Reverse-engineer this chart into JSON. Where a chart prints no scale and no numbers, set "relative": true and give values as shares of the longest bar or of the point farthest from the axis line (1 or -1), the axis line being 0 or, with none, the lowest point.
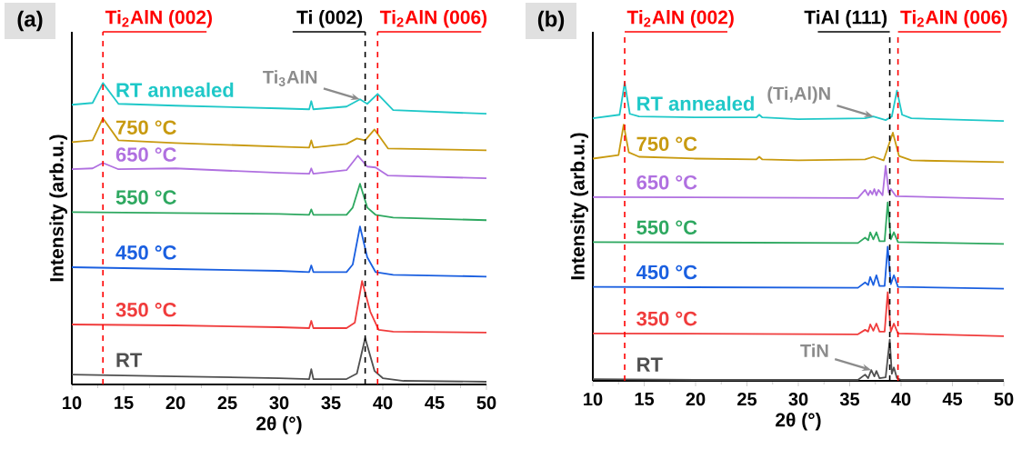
{
  "chart_data": [
    {
      "type": "line",
      "title": "(a)",
      "xlabel": "2θ (°)",
      "ylabel": "Intensity (arb.u.)",
      "relative": true,
      "xlim": [
        10,
        50
      ],
      "xticks": [
        10,
        15,
        20,
        25,
        30,
        35,
        40,
        45,
        50
      ],
      "series": [
        {
          "name": "RT",
          "color": "#505050",
          "x": [
            10,
            20,
            30,
            32.9,
            33.1,
            33.3,
            36.5,
            37.5,
            38.3,
            39.2,
            40,
            42,
            50
          ],
          "values": [
            0.033,
            0.027,
            0.021,
            0.018,
            0.051,
            0.018,
            0.018,
            0.036,
            0.154,
            0.045,
            0.021,
            0.012,
            0.009
          ]
        },
        {
          "name": "350 °C",
          "color": "#f03c3c",
          "x": [
            10,
            20,
            30,
            32.9,
            33.1,
            33.3,
            36.5,
            37.3,
            38.0,
            38.8,
            39.6,
            41,
            50
          ],
          "values": [
            0.199,
            0.196,
            0.19,
            0.187,
            0.211,
            0.187,
            0.187,
            0.205,
            0.343,
            0.241,
            0.181,
            0.175,
            0.172
          ]
        },
        {
          "name": "450 °C",
          "color": "#1a5fe0",
          "x": [
            10,
            20,
            30,
            32.9,
            33.1,
            33.3,
            36.5,
            37.1,
            37.8,
            38.5,
            39.3,
            41,
            50
          ],
          "values": [
            0.389,
            0.383,
            0.377,
            0.373,
            0.395,
            0.373,
            0.373,
            0.398,
            0.524,
            0.422,
            0.373,
            0.364,
            0.358
          ]
        },
        {
          "name": "550 °C",
          "color": "#2ea860",
          "x": [
            10,
            20,
            30,
            32.9,
            33.1,
            33.3,
            36.5,
            37.1,
            37.8,
            38.5,
            39.3,
            41,
            50
          ],
          "values": [
            0.572,
            0.569,
            0.566,
            0.563,
            0.581,
            0.563,
            0.563,
            0.587,
            0.666,
            0.587,
            0.563,
            0.554,
            0.545
          ]
        },
        {
          "name": "650 °C",
          "color": "#b070e0",
          "x": [
            10,
            12,
            13,
            14.5,
            20,
            30,
            32.9,
            33.1,
            33.3,
            36.5,
            37.6,
            38.5,
            39.3,
            40.5,
            50
          ],
          "values": [
            0.714,
            0.717,
            0.735,
            0.714,
            0.717,
            0.702,
            0.699,
            0.717,
            0.699,
            0.711,
            0.759,
            0.723,
            0.72,
            0.693,
            0.684
          ]
        },
        {
          "name": "750 °C",
          "color": "#c89a10",
          "x": [
            10,
            12,
            13,
            14.5,
            20,
            30,
            32.9,
            33.1,
            33.3,
            36.5,
            37.5,
            38.3,
            39.2,
            40.5,
            50
          ],
          "values": [
            0.804,
            0.81,
            0.883,
            0.81,
            0.801,
            0.789,
            0.786,
            0.81,
            0.786,
            0.798,
            0.816,
            0.81,
            0.846,
            0.783,
            0.777
          ]
        },
        {
          "name": "RT annealed",
          "color": "#1fc8c8",
          "x": [
            10,
            12,
            13,
            14.5,
            20,
            30,
            32.9,
            33.1,
            33.3,
            36.5,
            37.8,
            38.5,
            39.5,
            41,
            50
          ],
          "values": [
            0.928,
            0.934,
            1,
            0.931,
            0.925,
            0.916,
            0.913,
            0.94,
            0.913,
            0.922,
            0.946,
            0.931,
            0.964,
            0.91,
            0.898
          ]
        }
      ],
      "ref_lines": [
        {
          "axis": "x",
          "value": 13,
          "label": "Ti$_{2}$AlN (002)",
          "color": "#ff0000",
          "line_style": "dashed"
        },
        {
          "axis": "x",
          "value": 38.3,
          "label": "Ti (002)",
          "color": "#000000",
          "line_style": "dashed"
        },
        {
          "axis": "x",
          "value": 39.5,
          "label": "Ti$_{2}$AlN (006)",
          "color": "#ff0000",
          "line_style": "dashed"
        }
      ],
      "annotations": [
        {
          "text": "Ti$_{3}$AlN",
          "x": 37.8,
          "y": 0.946
        }
      ]
    },
    {
      "type": "line",
      "title": "(b)",
      "xlabel": "2θ (°)",
      "ylabel": "Intensity (arb.u.)",
      "relative": true,
      "xlim": [
        10,
        50
      ],
      "xticks": [
        10,
        15,
        20,
        25,
        30,
        35,
        40,
        45,
        50
      ],
      "series": [
        {
          "name": "RT",
          "color": "#505050",
          "x": [
            10,
            20,
            35.8,
            36.5,
            36.8,
            37.1,
            37.4,
            37.6,
            37.9,
            38.5,
            38.9,
            39.1,
            39.3,
            39.6,
            40,
            50
          ],
          "values": [
            0.006,
            0.003,
            0.003,
            0.021,
            0.009,
            0.036,
            0.015,
            0.033,
            0.009,
            0.012,
            0.138,
            0.024,
            0.045,
            0.009,
            0.003,
            0.003
          ]
        },
        {
          "name": "350 °C",
          "color": "#f03c3c",
          "x": [
            10,
            35.8,
            36.5,
            36.8,
            37.0,
            37.3,
            37.6,
            37.9,
            38.4,
            38.7,
            39.0,
            39.3,
            39.7,
            50
          ],
          "values": [
            0.159,
            0.156,
            0.171,
            0.165,
            0.189,
            0.168,
            0.192,
            0.165,
            0.165,
            0.297,
            0.165,
            0.192,
            0.159,
            0.15
          ]
        },
        {
          "name": "450 °C",
          "color": "#1a5fe0",
          "x": [
            10,
            35.8,
            36.5,
            36.8,
            37.0,
            37.3,
            37.6,
            37.9,
            38.4,
            38.7,
            39.0,
            39.3,
            39.7,
            50
          ],
          "values": [
            0.315,
            0.312,
            0.33,
            0.321,
            0.348,
            0.321,
            0.354,
            0.318,
            0.318,
            0.45,
            0.324,
            0.354,
            0.315,
            0.309
          ]
        },
        {
          "name": "550 °C",
          "color": "#2ea860",
          "x": [
            10,
            35.8,
            36.5,
            36.8,
            37.0,
            37.3,
            37.6,
            37.9,
            38.4,
            38.7,
            39.0,
            39.3,
            39.7,
            50
          ],
          "values": [
            0.465,
            0.462,
            0.48,
            0.471,
            0.498,
            0.474,
            0.498,
            0.468,
            0.468,
            0.598,
            0.474,
            0.498,
            0.465,
            0.459
          ]
        },
        {
          "name": "650 °C",
          "color": "#b070e0",
          "x": [
            10,
            35.8,
            36.5,
            36.8,
            37.0,
            37.2,
            37.4,
            37.6,
            37.8,
            38.2,
            38.5,
            38.8,
            39.0,
            39.5,
            50
          ],
          "values": [
            0.616,
            0.613,
            0.64,
            0.622,
            0.637,
            0.625,
            0.643,
            0.622,
            0.64,
            0.622,
            0.721,
            0.631,
            0.643,
            0.619,
            0.61
          ]
        },
        {
          "name": "750 °C",
          "color": "#c89a10",
          "x": [
            10,
            12.5,
            13,
            13.5,
            14.5,
            20,
            25.9,
            26.2,
            26.5,
            30,
            36.5,
            37.3,
            38.3,
            39.2,
            39.8,
            41,
            50
          ],
          "values": [
            0.745,
            0.757,
            0.859,
            0.766,
            0.751,
            0.745,
            0.742,
            0.751,
            0.742,
            0.739,
            0.742,
            0.751,
            0.739,
            0.832,
            0.754,
            0.739,
            0.733
          ]
        },
        {
          "name": "RT annealed",
          "color": "#1fc8c8",
          "x": [
            10,
            12.6,
            13.1,
            13.6,
            14.5,
            20,
            25.9,
            26.2,
            26.5,
            30,
            36.5,
            37.3,
            38.5,
            39.1,
            39.6,
            40.1,
            41,
            50
          ],
          "values": [
            0.88,
            0.892,
            1,
            0.895,
            0.886,
            0.883,
            0.883,
            0.892,
            0.883,
            0.877,
            0.88,
            0.886,
            0.874,
            0.886,
            0.973,
            0.892,
            0.88,
            0.871
          ]
        }
      ],
      "ref_lines": [
        {
          "axis": "x",
          "value": 13.1,
          "label": "Ti$_{2}$AlN (002)",
          "color": "#ff0000",
          "line_style": "dashed"
        },
        {
          "axis": "x",
          "value": 38.9,
          "label": "TiAl (111)",
          "color": "#000000",
          "line_style": "dashed"
        },
        {
          "axis": "x",
          "value": 39.7,
          "label": "Ti$_{2}$AlN (006)",
          "color": "#ff0000",
          "line_style": "dashed"
        }
      ],
      "annotations": [
        {
          "text": "(Ti,Al)N",
          "x": 37.3,
          "y": 0.886
        },
        {
          "text": "TiN",
          "x": 37.1,
          "y": 0.036
        }
      ]
    }
  ]
}
